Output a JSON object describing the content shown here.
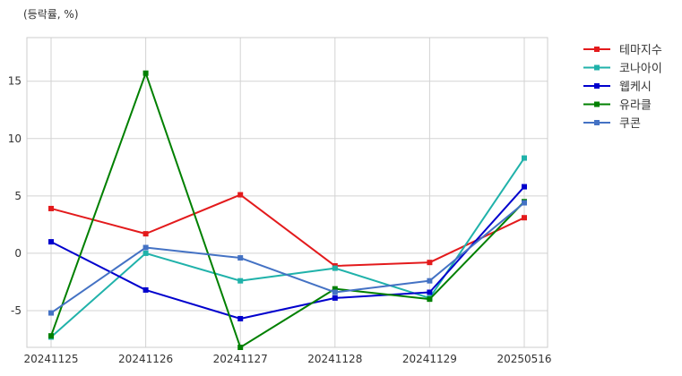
{
  "chart_data": {
    "type": "line",
    "title": "(등락률, %)",
    "xlabel": "",
    "ylabel": "",
    "categories": [
      "20241125",
      "20241126",
      "20241127",
      "20241128",
      "20241129",
      "20250516"
    ],
    "ylim": [
      -8.2,
      18.8
    ],
    "yticks": [
      -5,
      0,
      5,
      10,
      15
    ],
    "grid": true,
    "legend_position": "outside-right-top",
    "series": [
      {
        "name": "테마지수",
        "color": "#e31a1c",
        "values": [
          3.9,
          1.7,
          5.1,
          -1.1,
          -0.8,
          3.1
        ]
      },
      {
        "name": "코나아이",
        "color": "#20b2aa",
        "values": [
          -7.3,
          0.0,
          -2.4,
          -1.3,
          -3.9,
          8.3
        ]
      },
      {
        "name": "웹케시",
        "color": "#0000cd",
        "values": [
          1.0,
          -3.2,
          -5.7,
          -3.9,
          -3.4,
          5.8
        ]
      },
      {
        "name": "유라클",
        "color": "#008000",
        "values": [
          -7.2,
          15.7,
          -8.2,
          -3.1,
          -4.0,
          4.5
        ]
      },
      {
        "name": "쿠콘",
        "color": "#4472c4",
        "values": [
          -5.2,
          0.5,
          -0.4,
          -3.4,
          -2.4,
          4.4
        ]
      }
    ]
  }
}
